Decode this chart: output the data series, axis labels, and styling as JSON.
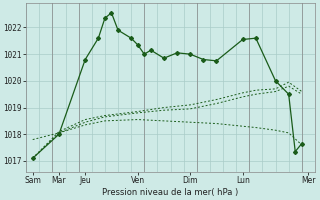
{
  "background_color": "#ceeae6",
  "grid_color": "#aaccc8",
  "line_color": "#1a5c1a",
  "xlabel": "Pression niveau de la mer( hPa )",
  "ylim": [
    1016.6,
    1022.9
  ],
  "xlim": [
    0,
    22
  ],
  "ytick_vals": [
    1017,
    1018,
    1019,
    1020,
    1021,
    1022
  ],
  "ytick_labels": [
    "1017",
    "1018",
    "1019",
    "1020",
    "1021",
    "1022"
  ],
  "xtick_positions": [
    0.5,
    2.5,
    4.5,
    8.5,
    12.5,
    16.5,
    21.5
  ],
  "xtick_labels": [
    "Sam",
    "Mar",
    "Jeu",
    "Ven",
    "Dim",
    "Lun",
    "Mer"
  ],
  "vlines": [
    2,
    4,
    9,
    13,
    17,
    21
  ],
  "series_main": {
    "x": [
      0.5,
      2.5,
      4.5,
      5.5,
      6.0,
      6.5,
      7.0,
      8.0,
      8.5,
      9.0,
      9.5,
      10.5,
      11.5,
      12.5,
      13.5,
      14.5,
      16.5,
      17.5,
      19.0,
      20.0,
      20.5,
      21.0
    ],
    "y": [
      1017.1,
      1018.0,
      1020.8,
      1021.6,
      1022.35,
      1022.55,
      1021.9,
      1021.6,
      1021.35,
      1021.0,
      1021.15,
      1020.85,
      1021.05,
      1021.0,
      1020.8,
      1020.75,
      1021.55,
      1021.6,
      1020.0,
      1019.5,
      1017.35,
      1017.65
    ]
  },
  "series_dotted_flat": {
    "x": [
      0.5,
      2.5,
      4.5,
      6.0,
      8.5,
      10.5,
      12.5,
      14.5,
      16.5,
      17.5,
      19.0,
      20.0,
      21.0
    ],
    "y": [
      1017.8,
      1018.05,
      1018.35,
      1018.5,
      1018.55,
      1018.5,
      1018.45,
      1018.4,
      1018.3,
      1018.25,
      1018.15,
      1018.05,
      1017.6
    ]
  },
  "series_dotted_rise1": {
    "x": [
      0.5,
      2.5,
      4.5,
      6.0,
      8.5,
      10.5,
      12.5,
      14.5,
      16.5,
      17.5,
      19.0,
      20.0,
      21.0
    ],
    "y": [
      1017.1,
      1018.1,
      1018.55,
      1018.7,
      1018.85,
      1019.0,
      1019.1,
      1019.3,
      1019.55,
      1019.65,
      1019.7,
      1019.95,
      1019.6
    ]
  },
  "series_dotted_rise2": {
    "x": [
      0.5,
      2.5,
      4.5,
      6.0,
      8.5,
      10.5,
      12.5,
      14.5,
      16.5,
      17.5,
      19.0,
      20.0,
      21.0
    ],
    "y": [
      1017.1,
      1018.05,
      1018.45,
      1018.65,
      1018.8,
      1018.9,
      1018.95,
      1019.15,
      1019.4,
      1019.5,
      1019.6,
      1019.8,
      1019.5
    ]
  }
}
